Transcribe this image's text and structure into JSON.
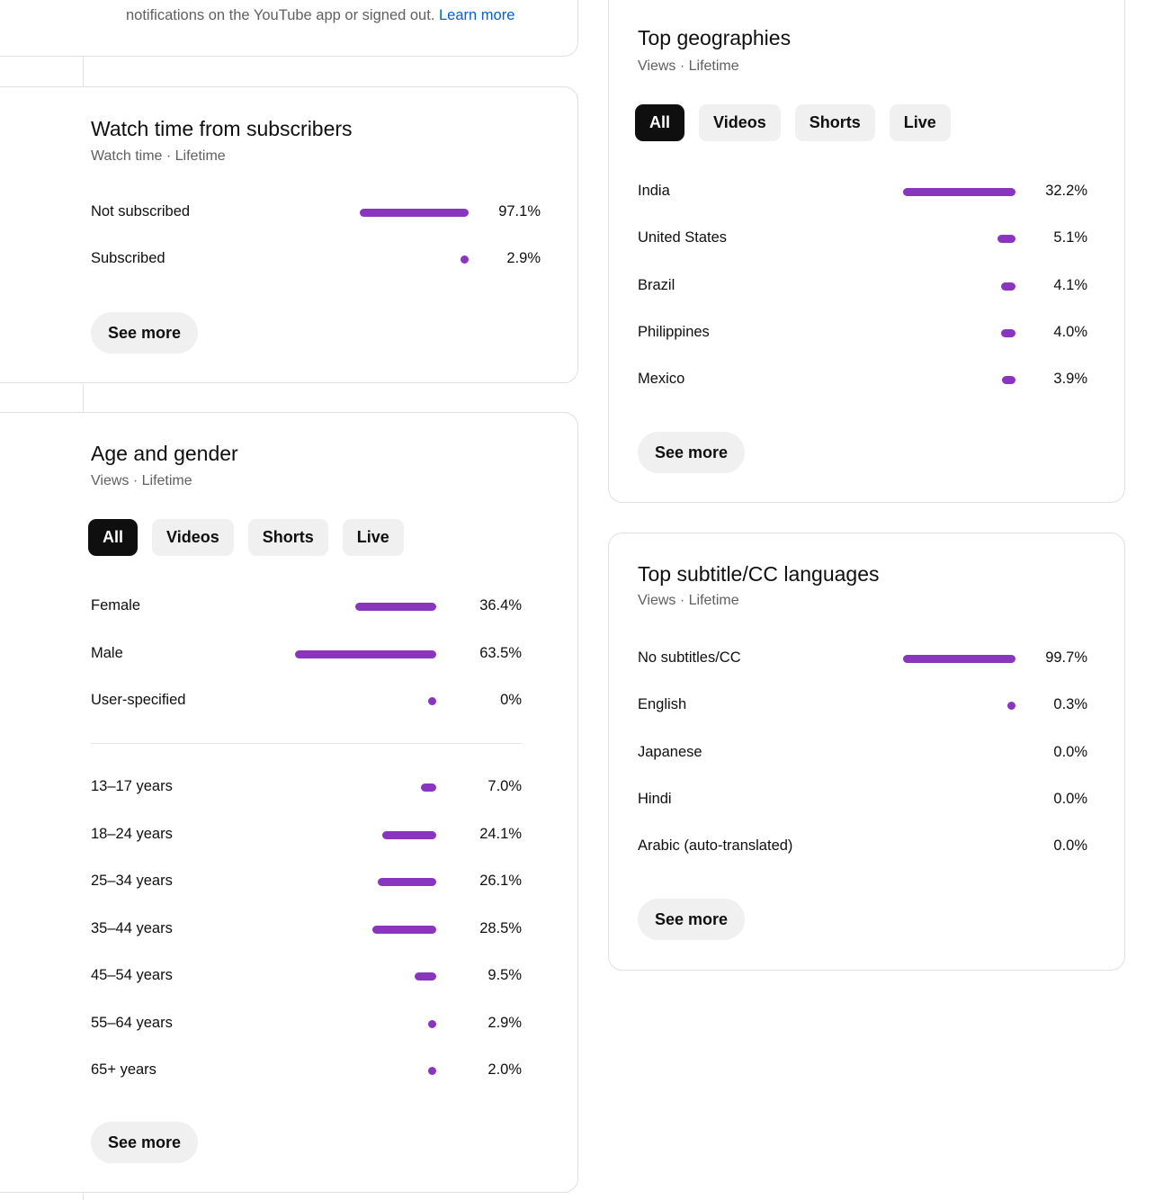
{
  "notice": {
    "text": "notifications on the YouTube app or signed out.",
    "link": "Learn more"
  },
  "watch_time": {
    "title": "Watch time from subscribers",
    "subtitle": "Watch time · Lifetime",
    "rows": [
      {
        "label": "Not subscribed",
        "value": "97.1%",
        "pct": 97.1
      },
      {
        "label": "Subscribed",
        "value": "2.9%",
        "pct": 2.9
      }
    ],
    "see_more": "See more"
  },
  "age_gender": {
    "title": "Age and gender",
    "subtitle": "Views · Lifetime",
    "tabs": [
      "All",
      "Videos",
      "Shorts",
      "Live"
    ],
    "gender_rows": [
      {
        "label": "Female",
        "value": "36.4%",
        "pct": 36.4
      },
      {
        "label": "Male",
        "value": "63.5%",
        "pct": 63.5
      },
      {
        "label": "User-specified",
        "value": "0%",
        "pct": 0
      }
    ],
    "age_rows": [
      {
        "label": "13–17 years",
        "value": "7.0%",
        "pct": 7.0
      },
      {
        "label": "18–24 years",
        "value": "24.1%",
        "pct": 24.1
      },
      {
        "label": "25–34 years",
        "value": "26.1%",
        "pct": 26.1
      },
      {
        "label": "35–44 years",
        "value": "28.5%",
        "pct": 28.5
      },
      {
        "label": "45–54 years",
        "value": "9.5%",
        "pct": 9.5
      },
      {
        "label": "55–64 years",
        "value": "2.9%",
        "pct": 2.9
      },
      {
        "label": "65+ years",
        "value": "2.0%",
        "pct": 2.0
      }
    ],
    "see_more": "See more"
  },
  "geographies": {
    "title": "Top geographies",
    "subtitle": "Views · Lifetime",
    "tabs": [
      "All",
      "Videos",
      "Shorts",
      "Live"
    ],
    "rows": [
      {
        "label": "India",
        "value": "32.2%",
        "pct": 32.2
      },
      {
        "label": "United States",
        "value": "5.1%",
        "pct": 5.1
      },
      {
        "label": "Brazil",
        "value": "4.1%",
        "pct": 4.1
      },
      {
        "label": "Philippines",
        "value": "4.0%",
        "pct": 4.0
      },
      {
        "label": "Mexico",
        "value": "3.9%",
        "pct": 3.9
      }
    ],
    "see_more": "See more"
  },
  "subtitles": {
    "title": "Top subtitle/CC languages",
    "subtitle": "Views · Lifetime",
    "rows": [
      {
        "label": "No subtitles/CC",
        "value": "99.7%",
        "pct": 99.7
      },
      {
        "label": "English",
        "value": "0.3%",
        "pct": 0.3
      },
      {
        "label": "Japanese",
        "value": "0.0%",
        "pct": 0.0
      },
      {
        "label": "Hindi",
        "value": "0.0%",
        "pct": 0.0
      },
      {
        "label": "Arabic (auto-translated)",
        "value": "0.0%",
        "pct": 0.0
      }
    ],
    "see_more": "See more"
  },
  "sidebar": {
    "icons": [
      "gear-icon",
      "feedback-icon"
    ]
  },
  "colors": {
    "bar": "#8a35c0",
    "link": "#065fd4",
    "chip_active": "#0f0f0f"
  }
}
